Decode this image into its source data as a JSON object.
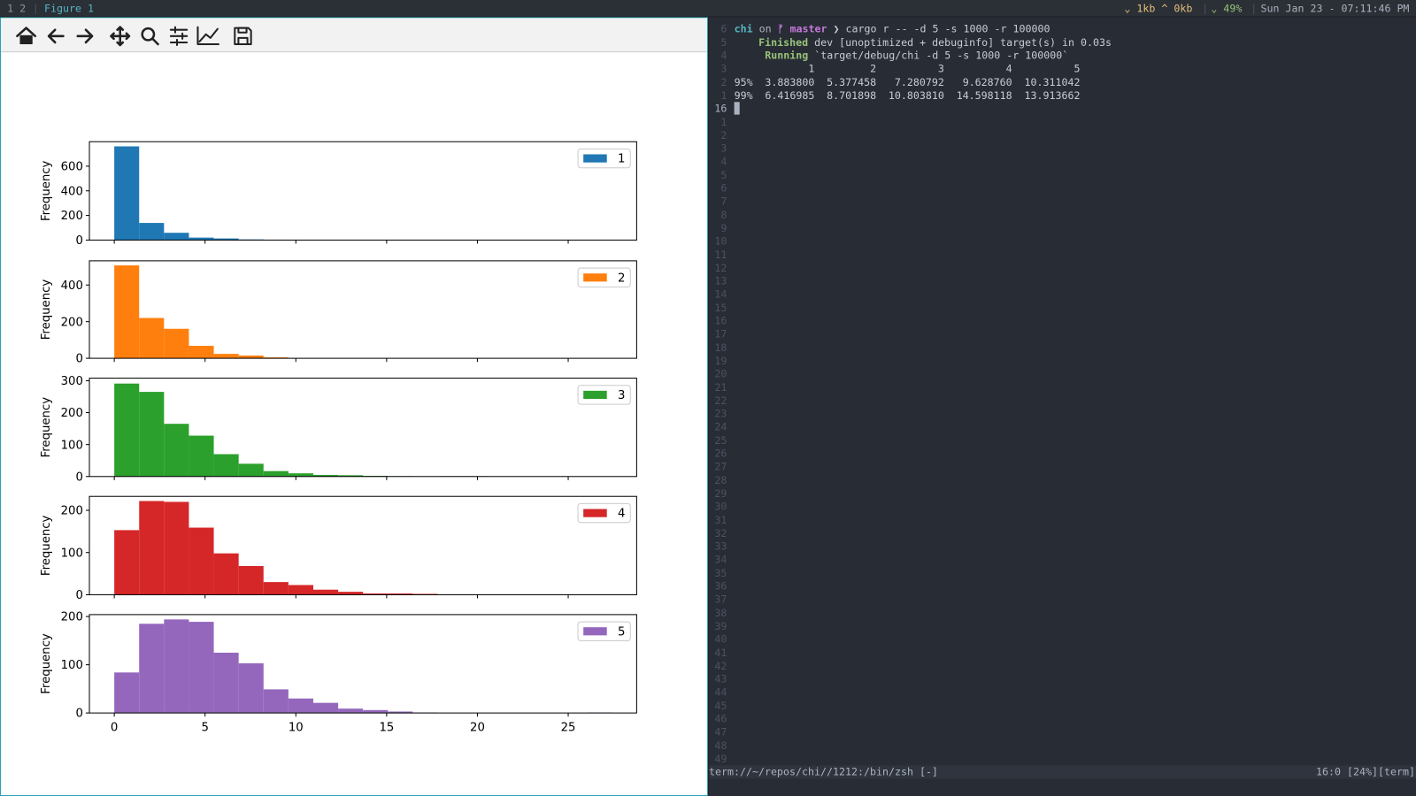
{
  "statusbar": {
    "workspaces": "1 2",
    "window_title": "Figure 1",
    "network": "⌄ 1kb ^ 0kb",
    "battery": "⌄ 49%",
    "clock": "Sun Jan 23 - 07:11:46 PM"
  },
  "chart_data": [
    {
      "type": "histogram",
      "y_label": "Frequency",
      "legend": "upper right",
      "bins": [
        0,
        1.37,
        2.74,
        4.11,
        5.48,
        6.85,
        8.22,
        9.59,
        10.96,
        12.33,
        13.7,
        15.07,
        16.44,
        17.81,
        19.18,
        20.55,
        21.92,
        23.29,
        24.66,
        26.03,
        27.4
      ],
      "series": [
        {
          "name": "1",
          "color": "#1f77b4",
          "values": [
            761,
            139,
            59,
            20,
            13,
            5,
            2,
            1,
            0,
            0,
            0,
            0,
            0,
            0,
            0,
            0,
            0,
            0,
            0,
            0
          ]
        }
      ],
      "xlim": [
        -1.37,
        28.77
      ],
      "ylim": [
        0,
        799
      ],
      "yticks": [
        0,
        200,
        400,
        600
      ]
    },
    {
      "type": "histogram",
      "y_label": "Frequency",
      "legend": "upper right",
      "bins": [
        0,
        1.37,
        2.74,
        4.11,
        5.48,
        6.85,
        8.22,
        9.59,
        10.96,
        12.33,
        13.7,
        15.07,
        16.44,
        17.81,
        19.18,
        20.55,
        21.92,
        23.29,
        24.66,
        26.03,
        27.4
      ],
      "series": [
        {
          "name": "2",
          "color": "#ff7f0e",
          "values": [
            507,
            220,
            161,
            68,
            24,
            15,
            5,
            0,
            0,
            0,
            0,
            0,
            0,
            0,
            0,
            0,
            0,
            0,
            0,
            0
          ]
        }
      ],
      "xlim": [
        -1.37,
        28.77
      ],
      "ylim": [
        0,
        532
      ],
      "yticks": [
        0,
        200,
        400
      ]
    },
    {
      "type": "histogram",
      "y_label": "Frequency",
      "legend": "upper right",
      "bins": [
        0,
        1.37,
        2.74,
        4.11,
        5.48,
        6.85,
        8.22,
        9.59,
        10.96,
        12.33,
        13.7,
        15.07,
        16.44,
        17.81,
        19.18,
        20.55,
        21.92,
        23.29,
        24.66,
        26.03,
        27.4
      ],
      "series": [
        {
          "name": "3",
          "color": "#2ca02c",
          "values": [
            291,
            265,
            165,
            128,
            70,
            40,
            17,
            10,
            5,
            4,
            2,
            1,
            0,
            1,
            1,
            0,
            0,
            0,
            0,
            0
          ]
        }
      ],
      "xlim": [
        -1.37,
        28.77
      ],
      "ylim": [
        0,
        308
      ],
      "yticks": [
        0,
        100,
        200,
        300
      ]
    },
    {
      "type": "histogram",
      "y_label": "Frequency",
      "legend": "upper right",
      "bins": [
        0,
        1.37,
        2.74,
        4.11,
        5.48,
        6.85,
        8.22,
        9.59,
        10.96,
        12.33,
        13.7,
        15.07,
        16.44,
        17.81,
        19.18,
        20.55,
        21.92,
        23.29,
        24.66,
        26.03,
        27.4
      ],
      "series": [
        {
          "name": "4",
          "color": "#d62728",
          "values": [
            153,
            222,
            220,
            159,
            98,
            68,
            30,
            23,
            12,
            7,
            3,
            3,
            2,
            0,
            0,
            0,
            0,
            0,
            0,
            0
          ]
        }
      ],
      "xlim": [
        -1.37,
        28.77
      ],
      "ylim": [
        0,
        233
      ],
      "yticks": [
        0,
        100,
        200
      ]
    },
    {
      "type": "histogram",
      "y_label": "Frequency",
      "legend": "upper right",
      "bins": [
        0,
        1.37,
        2.74,
        4.11,
        5.48,
        6.85,
        8.22,
        9.59,
        10.96,
        12.33,
        13.7,
        15.07,
        16.44,
        17.81,
        19.18,
        20.55,
        21.92,
        23.29,
        24.66,
        26.03,
        27.4
      ],
      "series": [
        {
          "name": "5",
          "color": "#9467bd",
          "values": [
            84,
            185,
            194,
            189,
            125,
            103,
            49,
            30,
            21,
            9,
            6,
            3,
            1,
            0,
            0,
            0,
            0,
            0,
            0,
            1
          ]
        }
      ],
      "xlim": [
        -1.37,
        28.77
      ],
      "ylim": [
        0,
        204
      ],
      "yticks": [
        0,
        100,
        200
      ],
      "xticks": [
        0,
        5,
        10,
        15,
        20,
        25
      ]
    }
  ],
  "terminal": {
    "line_numbers": [
      6,
      5,
      4,
      3,
      2,
      1,
      16,
      1,
      2,
      3,
      4,
      5,
      6,
      7,
      8,
      9,
      10,
      11,
      12,
      13,
      14,
      15,
      16,
      17,
      18,
      19,
      20,
      21,
      22,
      23,
      24,
      25,
      26,
      27,
      28,
      29,
      30,
      31,
      32,
      33,
      34,
      35,
      36,
      37,
      38,
      39,
      40,
      41,
      42,
      43,
      44,
      45,
      46,
      47,
      48,
      49
    ],
    "prompt": {
      "dir": "chi",
      "on": "on",
      "branch": "ᚠ master",
      "command": "❯ cargo r -- -d 5 -s 1000 -r 100000"
    },
    "build": {
      "status": "Finished",
      "message": "dev [unoptimized + debuginfo] target(s) in 0.03s"
    },
    "run": {
      "status": "Running",
      "message": "`target/debug/chi -d 5 -s 1000 -r 100000`"
    },
    "table": {
      "header": [
        "1",
        "2",
        "3",
        "4",
        "5"
      ],
      "rows": [
        {
          "label": "95%",
          "cells": [
            "3.883800",
            "5.377458",
            "7.280792",
            "9.628760",
            "10.311042"
          ]
        },
        {
          "label": "99%",
          "cells": [
            "6.416985",
            "8.701898",
            "10.803810",
            "14.598118",
            "13.913662"
          ]
        }
      ]
    },
    "status_left": "term://~/repos/chi//1212:/bin/zsh [-]",
    "status_right": "16:0 [24%][term]"
  }
}
